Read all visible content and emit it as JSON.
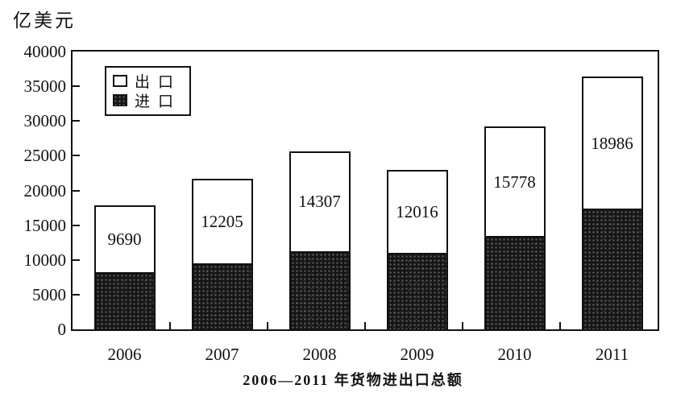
{
  "chart_data": {
    "type": "bar",
    "stacked": true,
    "title": "2006—2011 年货物进出口总额",
    "ylabel": "亿美元",
    "categories": [
      "2006",
      "2007",
      "2008",
      "2009",
      "2010",
      "2011"
    ],
    "series": [
      {
        "name": "出口",
        "values": [
          9690,
          12205,
          14307,
          12016,
          15778,
          18986
        ],
        "fill": "white",
        "data_labels_shown": true
      },
      {
        "name": "进口",
        "values": [
          8200,
          9500,
          11300,
          11000,
          13400,
          17400
        ],
        "fill": "dark-speckled",
        "data_labels_shown": false
      }
    ],
    "ylim": [
      0,
      40000
    ],
    "yticks": [
      0,
      5000,
      10000,
      15000,
      20000,
      25000,
      30000,
      35000,
      40000
    ],
    "grid": false,
    "legend_position": "inside-top-left"
  },
  "legend": {
    "items": [
      {
        "label": "出口",
        "swatch": "white"
      },
      {
        "label": "进口",
        "swatch": "dark-speckled"
      }
    ]
  },
  "colors": {
    "ink": "#111111",
    "paper": "#ffffff",
    "import_fill": "#161616",
    "export_fill": "#ffffff"
  }
}
